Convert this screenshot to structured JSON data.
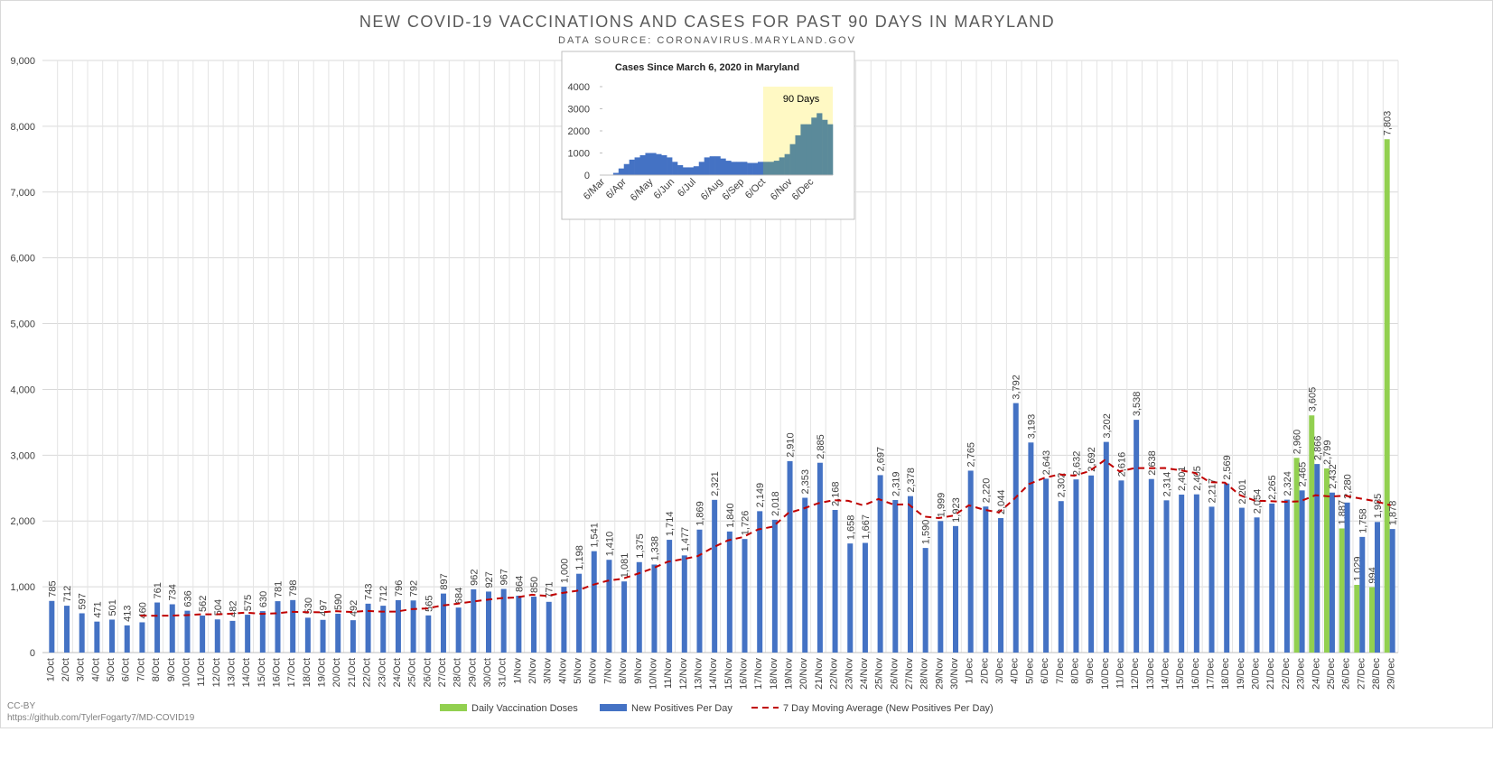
{
  "chart_data": [
    {
      "type": "bar",
      "title": "NEW COVID-19 VACCINATIONS AND CASES FOR PAST 90 DAYS IN MARYLAND",
      "subtitle": "DATA SOURCE: CORONAVIRUS.MARYLAND.GOV",
      "license": "CC-BY",
      "source_note": "https://github.com/TylerFogarty7/MD-COVID19",
      "categories": [
        "1/Oct",
        "2/Oct",
        "3/Oct",
        "4/Oct",
        "5/Oct",
        "6/Oct",
        "7/Oct",
        "8/Oct",
        "9/Oct",
        "10/Oct",
        "11/Oct",
        "12/Oct",
        "13/Oct",
        "14/Oct",
        "15/Oct",
        "16/Oct",
        "17/Oct",
        "18/Oct",
        "19/Oct",
        "20/Oct",
        "21/Oct",
        "22/Oct",
        "23/Oct",
        "24/Oct",
        "25/Oct",
        "26/Oct",
        "27/Oct",
        "28/Oct",
        "29/Oct",
        "30/Oct",
        "31/Oct",
        "1/Nov",
        "2/Nov",
        "3/Nov",
        "4/Nov",
        "5/Nov",
        "6/Nov",
        "7/Nov",
        "8/Nov",
        "9/Nov",
        "10/Nov",
        "11/Nov",
        "12/Nov",
        "13/Nov",
        "14/Nov",
        "15/Nov",
        "16/Nov",
        "17/Nov",
        "18/Nov",
        "19/Nov",
        "20/Nov",
        "21/Nov",
        "22/Nov",
        "23/Nov",
        "24/Nov",
        "25/Nov",
        "26/Nov",
        "27/Nov",
        "28/Nov",
        "29/Nov",
        "30/Nov",
        "1/Dec",
        "2/Dec",
        "3/Dec",
        "4/Dec",
        "5/Dec",
        "6/Dec",
        "7/Dec",
        "8/Dec",
        "9/Dec",
        "10/Dec",
        "11/Dec",
        "12/Dec",
        "13/Dec",
        "14/Dec",
        "15/Dec",
        "16/Dec",
        "17/Dec",
        "18/Dec",
        "19/Dec",
        "20/Dec",
        "21/Dec",
        "22/Dec",
        "23/Dec",
        "24/Dec",
        "25/Dec",
        "26/Dec",
        "27/Dec",
        "28/Dec",
        "29/Dec"
      ],
      "series": [
        {
          "name": "Daily Vaccination Doses",
          "type": "bar",
          "color": "#92d050",
          "values": [
            null,
            null,
            null,
            null,
            null,
            null,
            null,
            null,
            null,
            null,
            null,
            null,
            null,
            null,
            null,
            null,
            null,
            null,
            null,
            null,
            null,
            null,
            null,
            null,
            null,
            null,
            null,
            null,
            null,
            null,
            null,
            null,
            null,
            null,
            null,
            null,
            null,
            null,
            null,
            null,
            null,
            null,
            null,
            null,
            null,
            null,
            null,
            null,
            null,
            null,
            null,
            null,
            null,
            null,
            null,
            null,
            null,
            null,
            null,
            null,
            null,
            null,
            null,
            null,
            null,
            null,
            null,
            null,
            null,
            null,
            null,
            null,
            null,
            null,
            null,
            null,
            null,
            null,
            null,
            null,
            null,
            null,
            null,
            2960,
            3605,
            2799,
            1887,
            1029,
            994,
            7803
          ],
          "value_labels": [
            null,
            null,
            null,
            null,
            null,
            null,
            null,
            null,
            null,
            null,
            null,
            null,
            null,
            null,
            null,
            null,
            null,
            null,
            null,
            null,
            null,
            null,
            null,
            null,
            null,
            null,
            null,
            null,
            null,
            null,
            null,
            null,
            null,
            null,
            null,
            null,
            null,
            null,
            null,
            null,
            null,
            null,
            null,
            null,
            null,
            null,
            null,
            null,
            null,
            null,
            null,
            null,
            null,
            null,
            null,
            null,
            null,
            null,
            null,
            null,
            null,
            null,
            null,
            null,
            null,
            null,
            null,
            null,
            null,
            null,
            null,
            null,
            null,
            null,
            null,
            null,
            null,
            null,
            null,
            null,
            null,
            null,
            null,
            "2,960",
            "3,605",
            "2,799",
            "1,887",
            "1,029",
            "994",
            "7,803"
          ]
        },
        {
          "name": "New Positives Per Day",
          "type": "bar",
          "color": "#4472c4",
          "values": [
            785,
            712,
            597,
            471,
            501,
            413,
            460,
            761,
            734,
            636,
            562,
            504,
            482,
            575,
            630,
            781,
            798,
            530,
            497,
            590,
            492,
            743,
            712,
            796,
            792,
            565,
            897,
            684,
            962,
            927,
            967,
            864,
            850,
            771,
            1000,
            1198,
            1541,
            1410,
            1081,
            1375,
            1338,
            1714,
            1477,
            1869,
            2321,
            1840,
            1726,
            2149,
            2018,
            2910,
            2353,
            2885,
            2168,
            1658,
            1667,
            2697,
            2319,
            2378,
            1590,
            1999,
            1923,
            2765,
            2220,
            2044,
            3792,
            3193,
            2643,
            2302,
            2632,
            2692,
            3202,
            2616,
            3538,
            2638,
            2314,
            2401,
            2405,
            2217,
            2569,
            2201,
            2054,
            2265,
            2324,
            2465,
            2866,
            2432,
            2280,
            1758,
            1985,
            1878
          ],
          "value_labels": [
            "785",
            "712",
            "597",
            "471",
            "501",
            "413",
            "460",
            "761",
            "734",
            "636",
            "562",
            "504",
            "482",
            "575",
            "630",
            "781",
            "798",
            "530",
            "497",
            "590",
            "492",
            "743",
            "712",
            "796",
            "792",
            "565",
            "897",
            "684",
            "962",
            "927",
            "967",
            "864",
            "850",
            "771",
            "1,000",
            "1,198",
            "1,541",
            "1,410",
            "1,081",
            "1,375",
            "1,338",
            "1,714",
            "1,477",
            "1,869",
            "2,321",
            "1,840",
            "1,726",
            "2,149",
            "2,018",
            "2,910",
            "2,353",
            "2,885",
            "2,168",
            "1,658",
            "1,667",
            "2,697",
            "2,319",
            "2,378",
            "1,590",
            "1,999",
            "1,923",
            "2,765",
            "2,220",
            "2,044",
            "3,792",
            "3,193",
            "2,643",
            "2,302",
            "2,632",
            "2,692",
            "3,202",
            "2,616",
            "3,538",
            "2,638",
            "2,314",
            "2,401",
            "2,405",
            "2,217",
            "2,569",
            "2,201",
            "2,054",
            "2,265",
            "2,324",
            "2,465",
            "2,866",
            "2,432",
            "2,280",
            "1,758",
            "1,985",
            "1,878"
          ]
        },
        {
          "name": "7 Day Moving Average (New Positives Per Day)",
          "type": "line",
          "color": "#c00000",
          "values": [
            null,
            null,
            null,
            null,
            null,
            null,
            563,
            559,
            562,
            568,
            581,
            581,
            591,
            608,
            589,
            596,
            619,
            614,
            613,
            629,
            617,
            633,
            623,
            623,
            660,
            670,
            714,
            741,
            773,
            803,
            828,
            838,
            879,
            861,
            906,
            940,
            1027,
            1091,
            1122,
            1197,
            1278,
            1380,
            1419,
            1466,
            1596,
            1705,
            1755,
            1871,
            1914,
            2119,
            2188,
            2269,
            2316,
            2306,
            2237,
            2334,
            2250,
            2253,
            2068,
            2044,
            2082,
            2239,
            2171,
            2131,
            2333,
            2562,
            2654,
            2708,
            2689,
            2757,
            2922,
            2754,
            2804,
            2803,
            2805,
            2772,
            2731,
            2590,
            2583,
            2392,
            2309,
            2302,
            2291,
            2299,
            2392,
            2372,
            2384,
            2341,
            2301,
            2238
          ]
        }
      ],
      "ylim": [
        0,
        9000
      ],
      "yticks": [
        0,
        {
          "value": 1000,
          "label": "1,000"
        },
        {
          "value": 2000,
          "label": "2,000"
        },
        {
          "value": 3000,
          "label": "3,000"
        },
        {
          "value": 4000,
          "label": "4,000"
        },
        {
          "value": 5000,
          "label": "5,000"
        },
        {
          "value": 6000,
          "label": "6,000"
        },
        {
          "value": 7000,
          "label": "7,000"
        },
        {
          "value": 8000,
          "label": "8,000"
        },
        {
          "value": 9000,
          "label": "9,000"
        }
      ],
      "grid": true,
      "legend": "bottom"
    },
    {
      "type": "bar",
      "title": "Cases Since March 6, 2020 in Maryland",
      "categories": [
        "6/Mar",
        null,
        null,
        null,
        "6/Apr",
        null,
        null,
        null,
        null,
        "6/May",
        null,
        null,
        null,
        "6/Jun",
        null,
        null,
        null,
        "6/Jul",
        null,
        null,
        null,
        null,
        "6/Aug",
        null,
        null,
        null,
        "6/Sep",
        null,
        null,
        null,
        "6/Oct",
        null,
        null,
        null,
        null,
        "6/Nov",
        null,
        null,
        null,
        "6/Dec",
        null,
        null,
        null
      ],
      "values": [
        5,
        20,
        100,
        300,
        500,
        700,
        800,
        900,
        1000,
        1000,
        950,
        900,
        800,
        600,
        450,
        350,
        350,
        400,
        600,
        800,
        850,
        850,
        750,
        650,
        600,
        600,
        600,
        550,
        550,
        600,
        600,
        600,
        650,
        800,
        950,
        1400,
        1800,
        2300,
        2300,
        2600,
        2800,
        2500,
        2300
      ],
      "color": "#4472c4",
      "highlight_color": "#fff9c4",
      "highlight_bar_color": "#5b8a9a",
      "highlight": {
        "label": "90 Days",
        "start": 30
      },
      "ylim": [
        0,
        4000
      ],
      "yticks": [
        0,
        1000,
        2000,
        3000,
        4000
      ]
    }
  ]
}
